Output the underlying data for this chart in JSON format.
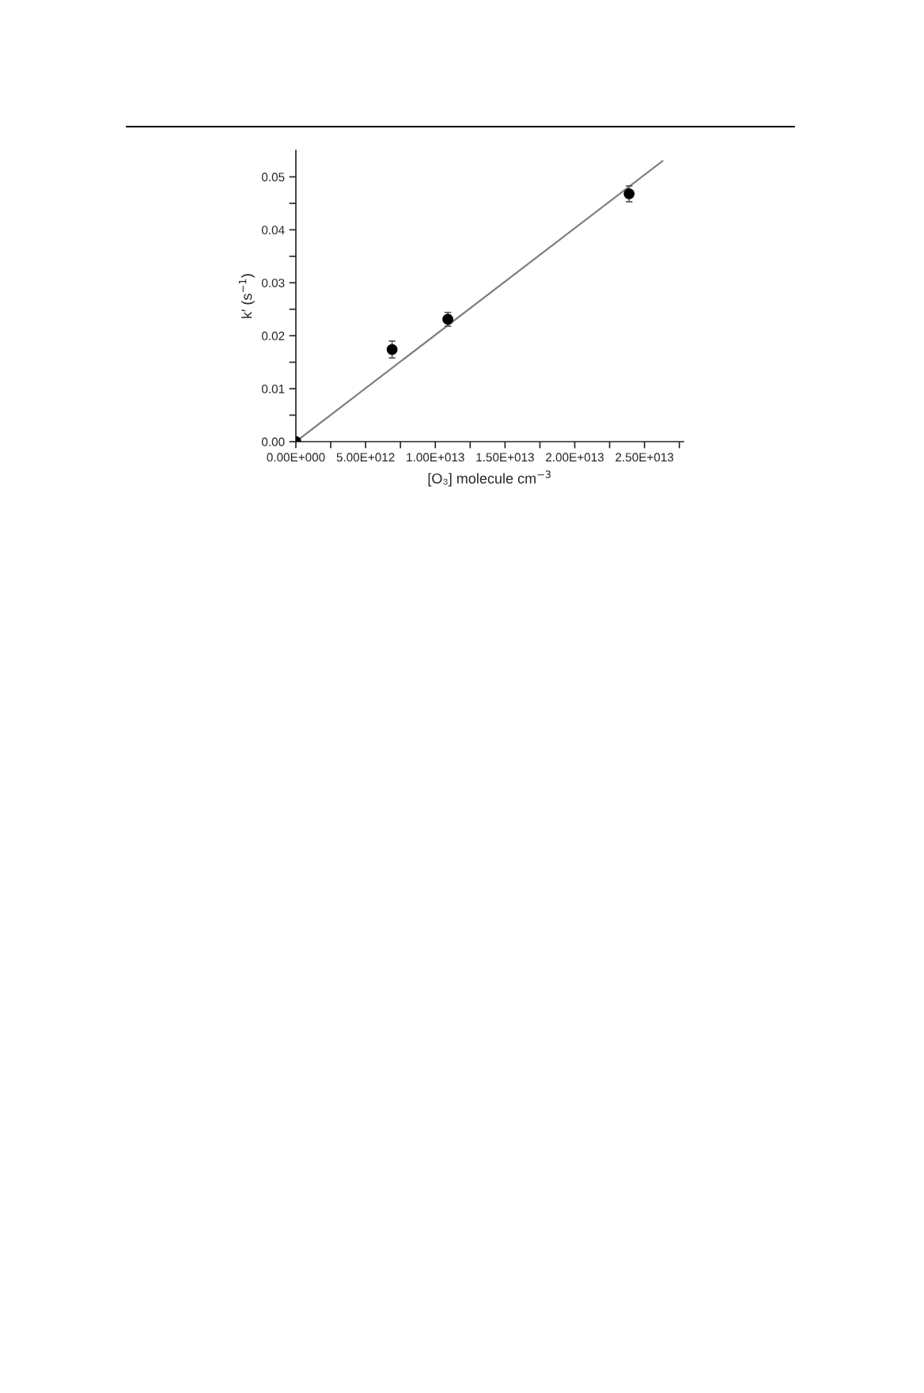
{
  "chart_data": {
    "type": "scatter",
    "xlabel": "[O₃] molecule cm$^{−3}$",
    "ylabel": "k′ (s$^{−1}$)",
    "series": [
      {
        "color": "#000000",
        "marker": "circle",
        "x": [
          0,
          6900000000000.0,
          10900000000000.0,
          23900000000000.0
        ],
        "values": [
          0,
          0.0174,
          0.0231,
          0.0468
        ],
        "errors": [
          null,
          0.0016,
          0.0013,
          0.0015
        ]
      },
      {
        "type": "line",
        "color": "#808080",
        "marker": "none",
        "line_style": "solid",
        "x": [
          0,
          26300000000000.0
        ],
        "values": [
          0,
          0.053
        ]
      }
    ],
    "xlim": [
      0,
      27800000000000.0
    ],
    "ylim": [
      0,
      0.055
    ],
    "xticks": [
      {
        "value": 0,
        "label": "0.00E+000"
      },
      {
        "value": 2500000000000.0,
        "label": null
      },
      {
        "value": 5000000000000.0,
        "label": "5.00E+012"
      },
      {
        "value": 7500000000000.0,
        "label": null
      },
      {
        "value": 10000000000000.0,
        "label": "1.00E+013"
      },
      {
        "value": 12500000000000.0,
        "label": null
      },
      {
        "value": 15000000000000.0,
        "label": "1.50E+013"
      },
      {
        "value": 17500000000000.0,
        "label": null
      },
      {
        "value": 20000000000000.0,
        "label": "2.00E+013"
      },
      {
        "value": 22500000000000.0,
        "label": null
      },
      {
        "value": 25000000000000.0,
        "label": "2.50E+013"
      },
      {
        "value": 27500000000000.0,
        "label": null
      }
    ],
    "yticks": [
      {
        "value": 0,
        "label": "0.00"
      },
      {
        "value": 0.005,
        "label": null
      },
      {
        "value": 0.01,
        "label": "0.01"
      },
      {
        "value": 0.015,
        "label": null
      },
      {
        "value": 0.02,
        "label": "0.02"
      },
      {
        "value": 0.025,
        "label": null
      },
      {
        "value": 0.03,
        "label": "0.03"
      },
      {
        "value": 0.035,
        "label": null
      },
      {
        "value": 0.04,
        "label": "0.04"
      },
      {
        "value": 0.045,
        "label": null
      },
      {
        "value": 0.05,
        "label": "0.05"
      }
    ],
    "grid": false,
    "legend": false
  }
}
